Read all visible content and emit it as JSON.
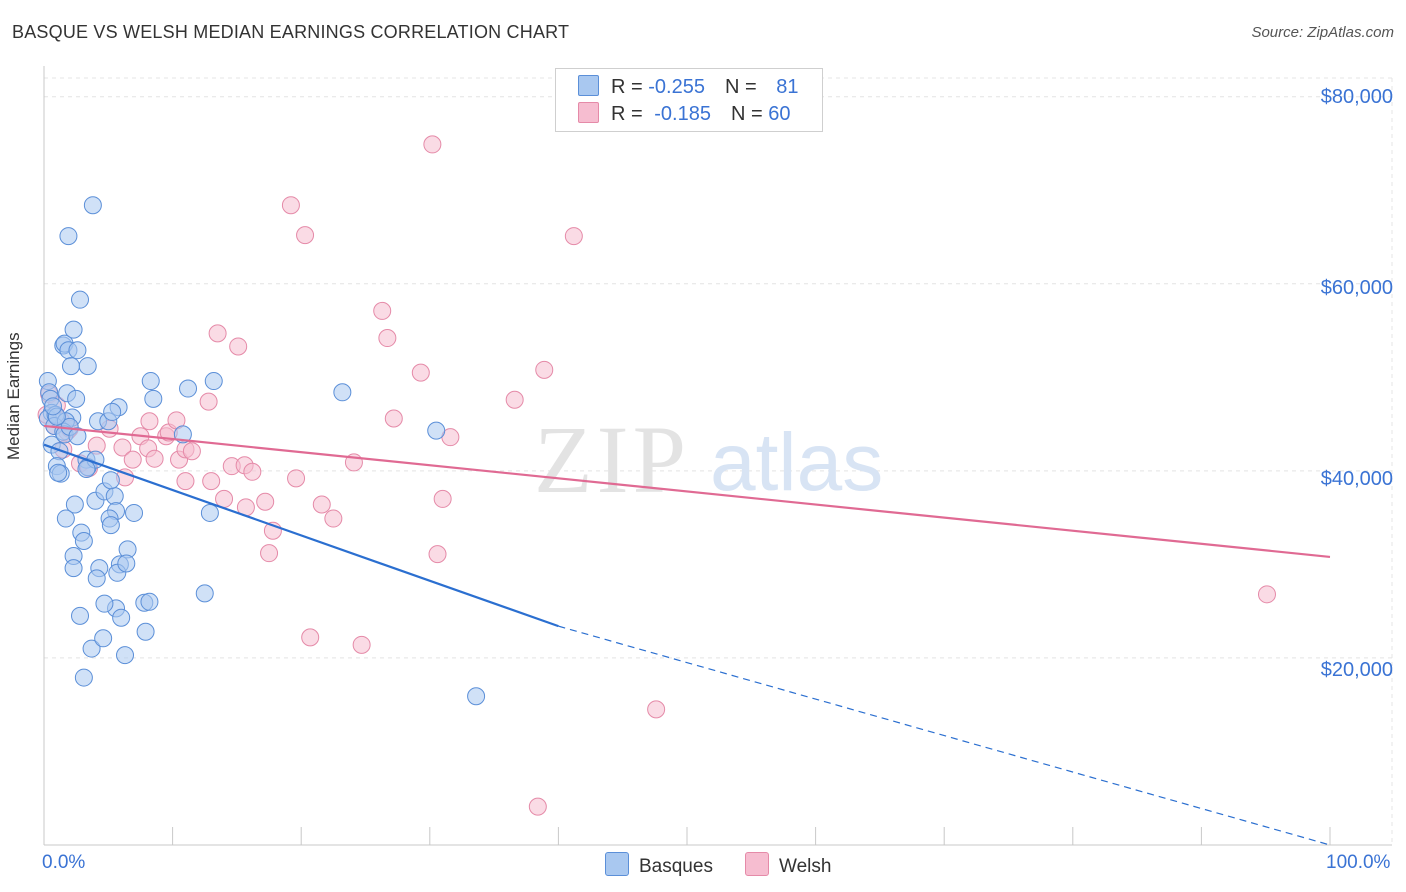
{
  "title": "BASQUE VS WELSH MEDIAN EARNINGS CORRELATION CHART",
  "source": "Source: ZipAtlas.com",
  "watermark": {
    "zip": "ZIP",
    "atlas": "atlas"
  },
  "colors": {
    "basque_fill": "#a9c8f0",
    "basque_stroke": "#5b8fd8",
    "basque_line": "#2b6fd0",
    "welsh_fill": "#f6bdd0",
    "welsh_stroke": "#e58aa8",
    "welsh_line": "#e06a93",
    "axis_text": "#3a73d4"
  },
  "legend_top": {
    "rows": [
      {
        "r_label": "R = ",
        "r_value": "-0.255",
        "n_label": "N = ",
        "n_value": "81"
      },
      {
        "r_label": "R = ",
        "r_value": "-0.185",
        "n_label": "N = ",
        "n_value": "60"
      }
    ]
  },
  "chart_data": {
    "type": "scatter",
    "ylabel": "Median Earnings",
    "xlim": [
      0,
      100
    ],
    "ylim": [
      0,
      82000
    ],
    "x_tick_labels": [
      "0.0%",
      "100.0%"
    ],
    "y_ticks": [
      20000,
      40000,
      60000,
      80000
    ],
    "y_tick_labels": [
      "$20,000",
      "$40,000",
      "$60,000",
      "$80,000"
    ],
    "grid": true,
    "legend": "bottom-center",
    "series": [
      {
        "name": "Basques",
        "points": [
          [
            0.3,
            49600
          ],
          [
            0.4,
            48400
          ],
          [
            0.5,
            47700
          ],
          [
            0.6,
            46200
          ],
          [
            0.3,
            45600
          ],
          [
            0.9,
            46000
          ],
          [
            0.8,
            44800
          ],
          [
            0.6,
            42800
          ],
          [
            1.2,
            42100
          ],
          [
            1.0,
            40500
          ],
          [
            1.3,
            39700
          ],
          [
            1.1,
            39800
          ],
          [
            1.5,
            53400
          ],
          [
            1.6,
            53600
          ],
          [
            1.9,
            52900
          ],
          [
            2.3,
            55100
          ],
          [
            2.1,
            51200
          ],
          [
            2.6,
            52900
          ],
          [
            3.4,
            51200
          ],
          [
            2.8,
            58300
          ],
          [
            1.9,
            65100
          ],
          [
            3.8,
            68400
          ],
          [
            1.8,
            48300
          ],
          [
            2.5,
            47700
          ],
          [
            2.2,
            45700
          ],
          [
            1.7,
            45300
          ],
          [
            1.5,
            44200
          ],
          [
            1.6,
            43900
          ],
          [
            3.3,
            41200
          ],
          [
            3.4,
            40400
          ],
          [
            4.2,
            45300
          ],
          [
            5.0,
            45300
          ],
          [
            5.8,
            46800
          ],
          [
            5.3,
            46300
          ],
          [
            2.4,
            36400
          ],
          [
            1.7,
            34900
          ],
          [
            2.9,
            33400
          ],
          [
            3.1,
            32500
          ],
          [
            4.0,
            36800
          ],
          [
            4.7,
            37800
          ],
          [
            5.5,
            37300
          ],
          [
            5.6,
            35700
          ],
          [
            5.1,
            34900
          ],
          [
            5.2,
            34200
          ],
          [
            5.9,
            30000
          ],
          [
            6.5,
            31600
          ],
          [
            2.3,
            30900
          ],
          [
            2.3,
            29600
          ],
          [
            4.3,
            29600
          ],
          [
            4.1,
            28500
          ],
          [
            5.7,
            29100
          ],
          [
            2.8,
            24500
          ],
          [
            5.6,
            25300
          ],
          [
            4.7,
            25800
          ],
          [
            6.0,
            24300
          ],
          [
            7.8,
            25900
          ],
          [
            8.2,
            26000
          ],
          [
            7.9,
            22800
          ],
          [
            3.7,
            21000
          ],
          [
            4.6,
            22100
          ],
          [
            6.3,
            20300
          ],
          [
            3.1,
            17900
          ],
          [
            8.3,
            49600
          ],
          [
            8.5,
            47700
          ],
          [
            10.8,
            43900
          ],
          [
            11.2,
            48800
          ],
          [
            13.2,
            49600
          ],
          [
            12.9,
            35500
          ],
          [
            12.5,
            26900
          ],
          [
            23.2,
            48400
          ],
          [
            30.5,
            44300
          ],
          [
            33.6,
            15900
          ],
          [
            5.2,
            39000
          ],
          [
            4.0,
            41200
          ],
          [
            2.0,
            44700
          ],
          [
            1.0,
            45800
          ],
          [
            0.7,
            46900
          ],
          [
            2.6,
            43700
          ],
          [
            6.4,
            30100
          ],
          [
            7.0,
            35500
          ],
          [
            3.3,
            40200
          ]
        ]
      },
      {
        "name": "Welsh",
        "points": [
          [
            0.2,
            46000
          ],
          [
            0.4,
            48200
          ],
          [
            1.0,
            47000
          ],
          [
            0.8,
            44800
          ],
          [
            1.3,
            45400
          ],
          [
            1.8,
            44200
          ],
          [
            2.0,
            44500
          ],
          [
            1.5,
            42300
          ],
          [
            2.8,
            40800
          ],
          [
            3.5,
            40300
          ],
          [
            4.1,
            42700
          ],
          [
            5.1,
            44500
          ],
          [
            6.1,
            42500
          ],
          [
            6.9,
            41200
          ],
          [
            7.5,
            43700
          ],
          [
            8.1,
            42400
          ],
          [
            8.2,
            45300
          ],
          [
            9.5,
            43700
          ],
          [
            9.7,
            44100
          ],
          [
            10.3,
            45400
          ],
          [
            10.5,
            41200
          ],
          [
            11.0,
            42300
          ],
          [
            11.5,
            42100
          ],
          [
            6.3,
            39300
          ],
          [
            8.6,
            41300
          ],
          [
            11.0,
            38900
          ],
          [
            13.0,
            38900
          ],
          [
            14.0,
            37000
          ],
          [
            14.6,
            40500
          ],
          [
            15.6,
            40600
          ],
          [
            16.2,
            39900
          ],
          [
            17.2,
            36700
          ],
          [
            15.7,
            36100
          ],
          [
            19.6,
            39200
          ],
          [
            21.6,
            36400
          ],
          [
            22.5,
            34900
          ],
          [
            17.8,
            33600
          ],
          [
            17.5,
            31200
          ],
          [
            12.8,
            47400
          ],
          [
            13.5,
            54700
          ],
          [
            15.1,
            53300
          ],
          [
            19.2,
            68400
          ],
          [
            20.3,
            65200
          ],
          [
            26.3,
            57100
          ],
          [
            27.2,
            45600
          ],
          [
            26.7,
            54200
          ],
          [
            29.3,
            50500
          ],
          [
            30.6,
            31100
          ],
          [
            31.0,
            37000
          ],
          [
            36.6,
            47600
          ],
          [
            38.9,
            50800
          ],
          [
            41.2,
            65100
          ],
          [
            30.2,
            74900
          ],
          [
            24.1,
            40900
          ],
          [
            20.7,
            22200
          ],
          [
            24.7,
            21400
          ],
          [
            47.6,
            14500
          ],
          [
            38.4,
            4100
          ],
          [
            95.1,
            26800
          ],
          [
            31.6,
            43600
          ]
        ]
      }
    ],
    "trend_lines": [
      {
        "series": "Basques",
        "solid": [
          [
            0,
            42800
          ],
          [
            40,
            23400
          ]
        ],
        "dashed": [
          [
            40,
            23400
          ],
          [
            100,
            0
          ]
        ]
      },
      {
        "series": "Welsh",
        "solid": [
          [
            0,
            44800
          ],
          [
            100,
            30800
          ]
        ]
      }
    ]
  },
  "legend_bottom": {
    "items": [
      "Basques",
      "Welsh"
    ]
  }
}
